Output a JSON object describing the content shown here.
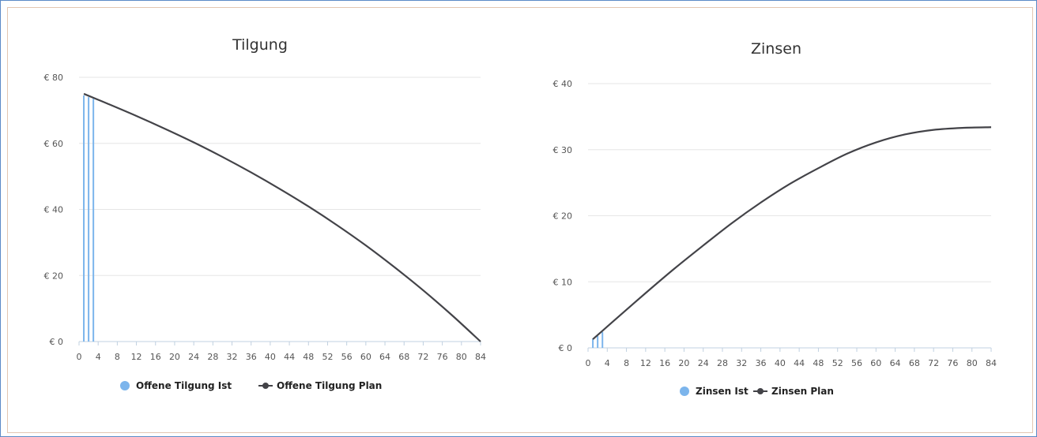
{
  "chart_data": [
    {
      "type": "line",
      "title": "Tilgung",
      "xlabel": "",
      "ylabel": "",
      "xlim": [
        0,
        84
      ],
      "ylim": [
        0,
        80
      ],
      "x_ticks": [
        "0",
        "4",
        "8",
        "12",
        "16",
        "20",
        "24",
        "28",
        "32",
        "36",
        "40",
        "44",
        "48",
        "52",
        "56",
        "60",
        "64",
        "68",
        "72",
        "76",
        "80",
        "84"
      ],
      "y_ticks": [
        "€ 0",
        "€ 20",
        "€ 40",
        "€ 60",
        "€ 80"
      ],
      "grid": true,
      "legend_position": "bottom-center",
      "series": [
        {
          "name": "Offene Tilgung Ist",
          "type": "column",
          "color": "#7cb5ec",
          "x": [
            1,
            2,
            3
          ],
          "y": [
            74.5,
            74.0,
            73.5
          ]
        },
        {
          "name": "Offene Tilgung Plan",
          "type": "line",
          "color": "#434348",
          "x": [
            1,
            6,
            12,
            18,
            24,
            30,
            36,
            42,
            48,
            54,
            60,
            66,
            72,
            78,
            84
          ],
          "y": [
            75.0,
            72.0,
            68.3,
            64.4,
            60.3,
            55.9,
            51.2,
            46.2,
            40.9,
            35.2,
            29.1,
            22.5,
            15.5,
            8.0,
            0.0
          ]
        }
      ]
    },
    {
      "type": "line",
      "title": "Zinsen",
      "xlabel": "",
      "ylabel": "",
      "xlim": [
        0,
        84
      ],
      "ylim": [
        0,
        40
      ],
      "x_ticks": [
        "0",
        "4",
        "8",
        "12",
        "16",
        "20",
        "24",
        "28",
        "32",
        "36",
        "40",
        "44",
        "48",
        "52",
        "56",
        "60",
        "64",
        "68",
        "72",
        "76",
        "80",
        "84"
      ],
      "y_ticks": [
        "€ 0",
        "€ 10",
        "€ 20",
        "€ 30",
        "€ 40"
      ],
      "grid": true,
      "legend_position": "bottom-center",
      "series": [
        {
          "name": "Zinsen Ist",
          "type": "column",
          "color": "#7cb5ec",
          "x": [
            1,
            2,
            3
          ],
          "y": [
            1.4,
            1.8,
            2.4
          ]
        },
        {
          "name": "Zinsen Plan",
          "type": "line",
          "color": "#434348",
          "x": [
            1,
            6,
            12,
            18,
            24,
            30,
            36,
            42,
            48,
            54,
            60,
            66,
            72,
            78,
            84
          ],
          "y": [
            1.3,
            4.5,
            8.3,
            12.0,
            15.5,
            18.9,
            22.0,
            24.8,
            27.2,
            29.4,
            31.1,
            32.3,
            33.0,
            33.3,
            33.4
          ]
        }
      ]
    }
  ]
}
